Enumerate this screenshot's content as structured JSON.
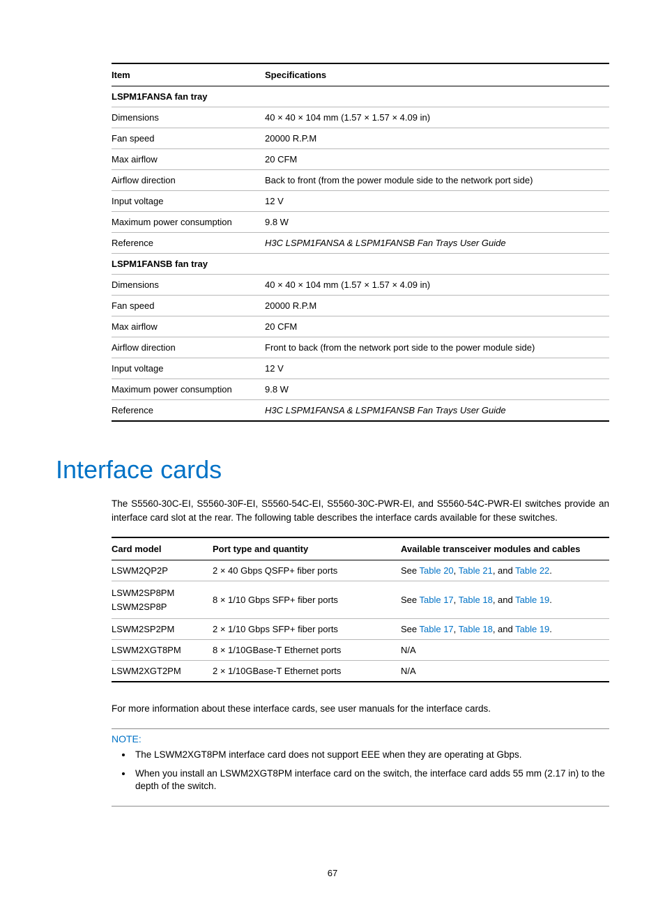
{
  "specTable": {
    "headers": [
      "Item",
      "Specifications"
    ],
    "sections": [
      {
        "title": "LSPM1FANSA fan tray",
        "rows": [
          [
            "Dimensions",
            "40 × 40 × 104 mm (1.57 × 1.57 × 4.09 in)"
          ],
          [
            "Fan speed",
            "20000 R.P.M"
          ],
          [
            "Max airflow",
            "20 CFM"
          ],
          [
            "Airflow direction",
            "Back to front (from the power module side to the network port side)"
          ],
          [
            "Input voltage",
            "12 V"
          ],
          [
            "Maximum power consumption",
            "9.8 W"
          ]
        ],
        "reference": {
          "label": "Reference",
          "value": "H3C LSPM1FANSA & LSPM1FANSB Fan Trays User Guide"
        }
      },
      {
        "title": "LSPM1FANSB fan tray",
        "rows": [
          [
            "Dimensions",
            "40 × 40 × 104 mm (1.57 × 1.57 × 4.09 in)"
          ],
          [
            "Fan speed",
            "20000 R.P.M"
          ],
          [
            "Max airflow",
            "20 CFM"
          ],
          [
            "Airflow direction",
            "Front to back (from the network port side to the power module side)"
          ],
          [
            "Input voltage",
            "12 V"
          ],
          [
            "Maximum power consumption",
            "9.8 W"
          ]
        ],
        "reference": {
          "label": "Reference",
          "value": "H3C LSPM1FANSA & LSPM1FANSB Fan Trays User Guide"
        }
      }
    ]
  },
  "heading": "Interface cards",
  "intro": "The S5560-30C-EI, S5560-30F-EI, S5560-54C-EI, S5560-30C-PWR-EI, and S5560-54C-PWR-EI switches provide an interface card slot at the rear. The following table describes the interface cards available for these switches.",
  "cardsTable": {
    "headers": [
      "Card model",
      "Port type and quantity",
      "Available transceiver modules and cables"
    ],
    "rows": [
      {
        "model": "LSWM2QP2P",
        "port": "2 × 40 Gbps QSFP+ fiber ports",
        "avail": {
          "pre": "See ",
          "links": [
            "Table 20",
            "Table 21",
            "Table 22"
          ],
          "sep": ", ",
          "lastSep": ", and ",
          "post": "."
        }
      },
      {
        "model": "LSWM2SP8PM\nLSWM2SP8P",
        "port": "8 × 1/10 Gbps SFP+ fiber ports",
        "avail": {
          "pre": "See ",
          "links": [
            "Table 17",
            "Table 18",
            "Table 19"
          ],
          "sep": ", ",
          "lastSep": ", and ",
          "post": "."
        }
      },
      {
        "model": "LSWM2SP2PM",
        "port": "2 × 1/10 Gbps SFP+ fiber ports",
        "avail": {
          "pre": "See ",
          "links": [
            "Table 17",
            "Table 18",
            "Table 19"
          ],
          "sep": ", ",
          "lastSep": ", and ",
          "post": "."
        }
      },
      {
        "model": "LSWM2XGT8PM",
        "port": "8 × 1/10GBase-T Ethernet ports",
        "avail": {
          "plain": "N/A"
        }
      },
      {
        "model": "LSWM2XGT2PM",
        "port": "2 × 1/10GBase-T Ethernet ports",
        "avail": {
          "plain": "N/A"
        }
      }
    ]
  },
  "afterTable": "For more information about these interface cards, see user manuals for the interface cards.",
  "note": {
    "label": "NOTE:",
    "items": [
      "The LSWM2XGT8PM interface card does not support EEE when they are operating at Gbps.",
      "When you install an LSWM2XGT8PM interface card on the switch, the interface card adds 55 mm (2.17 in) to the depth of the switch."
    ]
  },
  "pageNumber": "67"
}
